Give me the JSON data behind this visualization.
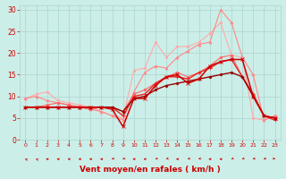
{
  "background_color": "#cceee8",
  "grid_color": "#aad4ce",
  "xlabel": "Vent moyen/en rafales ( km/h )",
  "xlabel_color": "#cc0000",
  "xlabel_fontsize": 6.5,
  "ylabel_ticks": [
    0,
    5,
    10,
    15,
    20,
    25,
    30
  ],
  "xlim": [
    -0.5,
    23.5
  ],
  "ylim": [
    0,
    31
  ],
  "tick_color": "#cc0000",
  "lines": [
    {
      "x": [
        0,
        1,
        2,
        3,
        4,
        5,
        6,
        7,
        8,
        9,
        10,
        11,
        12,
        13,
        14,
        15,
        16,
        17,
        18,
        19,
        20,
        21,
        22,
        23
      ],
      "y": [
        9.5,
        10.5,
        11.0,
        9.0,
        8.5,
        8.0,
        7.5,
        6.5,
        5.5,
        5.0,
        16.0,
        16.5,
        22.5,
        19.0,
        21.5,
        21.5,
        22.5,
        24.5,
        27.0,
        19.5,
        19.0,
        5.0,
        4.5,
        5.5
      ],
      "color": "#ffaaaa",
      "lw": 0.8,
      "marker": "D",
      "ms": 1.5,
      "zorder": 2
    },
    {
      "x": [
        0,
        1,
        2,
        3,
        4,
        5,
        6,
        7,
        8,
        9,
        10,
        11,
        12,
        13,
        14,
        15,
        16,
        17,
        18,
        19,
        20,
        21,
        22,
        23
      ],
      "y": [
        9.5,
        10.0,
        9.0,
        8.5,
        8.0,
        7.5,
        7.0,
        6.5,
        5.5,
        4.5,
        11.0,
        15.5,
        17.0,
        16.5,
        19.0,
        20.5,
        22.0,
        22.5,
        30.0,
        27.0,
        19.0,
        15.0,
        4.5,
        5.5
      ],
      "color": "#ff8888",
      "lw": 0.8,
      "marker": "^",
      "ms": 2.0,
      "zorder": 2
    },
    {
      "x": [
        0,
        1,
        2,
        3,
        4,
        5,
        6,
        7,
        8,
        9,
        10,
        11,
        12,
        13,
        14,
        15,
        16,
        17,
        18,
        19,
        20,
        21,
        22,
        23
      ],
      "y": [
        7.5,
        7.5,
        8.0,
        8.5,
        8.0,
        7.5,
        7.0,
        7.5,
        7.5,
        6.5,
        10.5,
        11.5,
        13.0,
        14.5,
        15.5,
        14.5,
        15.5,
        17.0,
        19.0,
        19.5,
        14.5,
        10.5,
        5.5,
        5.0
      ],
      "color": "#ff6666",
      "lw": 0.8,
      "marker": "s",
      "ms": 1.5,
      "zorder": 2
    },
    {
      "x": [
        0,
        1,
        2,
        3,
        4,
        5,
        6,
        7,
        8,
        9,
        10,
        11,
        12,
        13,
        14,
        15,
        16,
        17,
        18,
        19,
        20,
        21,
        22,
        23
      ],
      "y": [
        7.5,
        7.5,
        7.5,
        7.5,
        7.5,
        7.5,
        7.5,
        7.5,
        7.5,
        5.5,
        10.0,
        10.5,
        13.0,
        14.5,
        14.5,
        14.0,
        15.5,
        16.5,
        18.0,
        18.5,
        14.5,
        10.5,
        5.5,
        4.5
      ],
      "color": "#ee2222",
      "lw": 1.0,
      "marker": "+",
      "ms": 2.5,
      "zorder": 3
    },
    {
      "x": [
        0,
        1,
        2,
        3,
        4,
        5,
        6,
        7,
        8,
        9,
        10,
        11,
        12,
        13,
        14,
        15,
        16,
        17,
        18,
        19,
        20,
        21,
        22,
        23
      ],
      "y": [
        7.5,
        7.5,
        7.5,
        7.5,
        7.5,
        7.5,
        7.5,
        7.5,
        7.0,
        3.0,
        9.5,
        9.5,
        12.5,
        14.5,
        15.0,
        13.0,
        14.0,
        17.0,
        18.0,
        18.5,
        18.5,
        10.0,
        5.5,
        5.0
      ],
      "color": "#cc0000",
      "lw": 1.1,
      "marker": "x",
      "ms": 2.5,
      "zorder": 4
    },
    {
      "x": [
        0,
        1,
        2,
        3,
        4,
        5,
        6,
        7,
        8,
        9,
        10,
        11,
        12,
        13,
        14,
        15,
        16,
        17,
        18,
        19,
        20,
        21,
        22,
        23
      ],
      "y": [
        7.5,
        7.5,
        7.5,
        7.5,
        7.5,
        7.5,
        7.5,
        7.5,
        7.5,
        6.5,
        9.5,
        10.0,
        11.5,
        12.5,
        13.0,
        13.5,
        14.0,
        14.5,
        15.0,
        15.5,
        14.5,
        10.0,
        5.5,
        5.0
      ],
      "color": "#990000",
      "lw": 1.0,
      "marker": "D",
      "ms": 1.5,
      "zorder": 3
    }
  ],
  "arrow_directions": [
    225,
    225,
    270,
    270,
    270,
    270,
    270,
    270,
    315,
    315,
    270,
    270,
    315,
    315,
    270,
    315,
    315,
    270,
    270,
    315,
    315,
    315,
    315,
    45
  ],
  "arrow_color": "#cc0000"
}
